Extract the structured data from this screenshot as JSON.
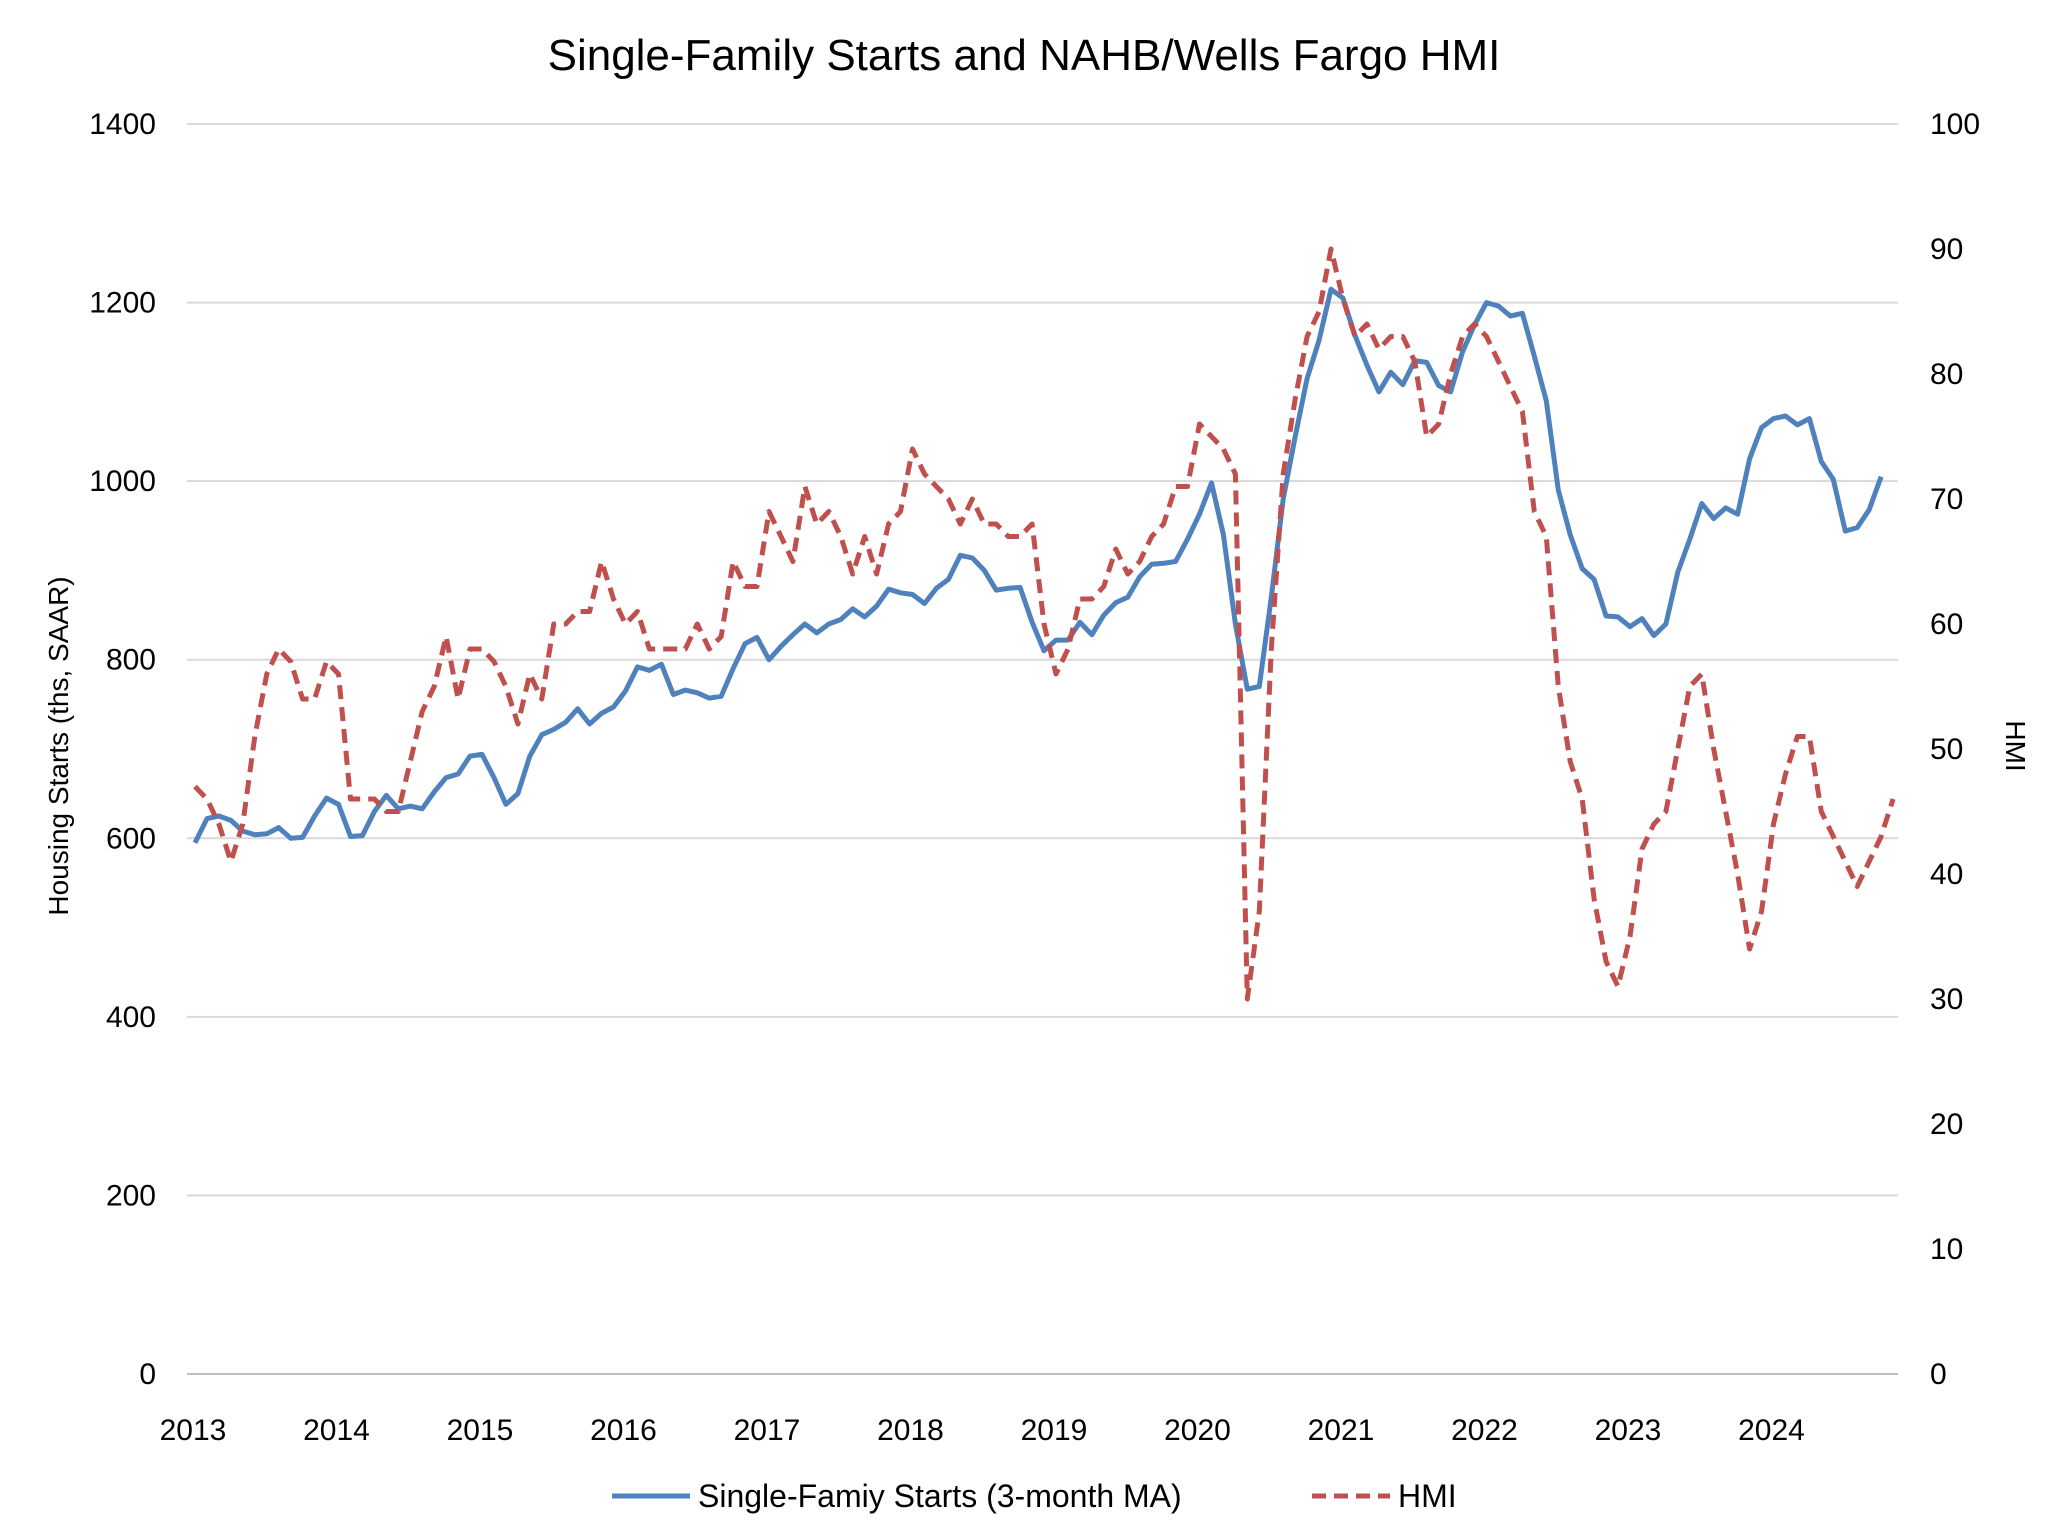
{
  "chart_data": {
    "type": "line",
    "title": "Single-Family Starts and NAHB/Wells Fargo HMI",
    "ylabel_left": "Housing Starts (ths, SAAR)",
    "ylabel_right": "HMI",
    "ylim_left": [
      0,
      1400
    ],
    "ylim_right": [
      0,
      100
    ],
    "yticks_left": [
      "0",
      "200",
      "400",
      "600",
      "800",
      "1000",
      "1200",
      "1400"
    ],
    "yticks_right": [
      "0",
      "10",
      "20",
      "30",
      "40",
      "50",
      "60",
      "70",
      "80",
      "90",
      "100"
    ],
    "xticks": [
      "2013",
      "2014",
      "2015",
      "2016",
      "2017",
      "2018",
      "2019",
      "2020",
      "2021",
      "2022",
      "2023",
      "2024"
    ],
    "grid": true,
    "legend_position": "bottom",
    "x_start": "2013-01",
    "x_frequency": "monthly",
    "series": [
      {
        "name": "Single-Famiy Starts (3-month MA)",
        "axis": "left",
        "color": "#4f81bd",
        "style": "solid",
        "values": [
          595,
          622,
          625,
          620,
          608,
          604,
          605,
          612,
          600,
          601,
          625,
          645,
          638,
          602,
          603,
          630,
          648,
          633,
          636,
          633,
          652,
          668,
          672,
          692,
          694,
          668,
          638,
          650,
          692,
          716,
          722,
          730,
          745,
          728,
          740,
          747,
          765,
          792,
          788,
          795,
          761,
          766,
          763,
          757,
          759,
          790,
          818,
          825,
          800,
          815,
          828,
          840,
          830,
          840,
          845,
          857,
          848,
          860,
          879,
          875,
          873,
          863,
          880,
          890,
          917,
          914,
          900,
          878,
          880,
          881,
          842,
          810,
          822,
          822,
          842,
          828,
          850,
          864,
          870,
          893,
          907,
          908,
          910,
          935,
          963,
          998,
          940,
          840,
          767,
          770,
          870,
          980,
          1050,
          1115,
          1158,
          1215,
          1205,
          1163,
          1130,
          1100,
          1122,
          1108,
          1135,
          1133,
          1107,
          1100,
          1145,
          1175,
          1200,
          1196,
          1185,
          1188,
          1140,
          1090,
          990,
          940,
          902,
          890,
          849,
          848,
          837,
          846,
          827,
          840,
          898,
          935,
          975,
          958,
          970,
          963,
          1025,
          1060,
          1070,
          1073,
          1063,
          1070,
          1022,
          1002,
          944,
          948,
          968,
          1005
        ]
      },
      {
        "name": "HMI",
        "axis": "right",
        "color": "#c0504d",
        "style": "dashed",
        "values": [
          47,
          46,
          44,
          41,
          44,
          51,
          56,
          58,
          57,
          54,
          54,
          57,
          56,
          46,
          46,
          46,
          45,
          45,
          49,
          53,
          55,
          59,
          54,
          58,
          58,
          57,
          55,
          52,
          56,
          54,
          60,
          60,
          61,
          61,
          65,
          62,
          60,
          61,
          58,
          58,
          58,
          58,
          60,
          58,
          59,
          65,
          63,
          63,
          69,
          67,
          65,
          71,
          68,
          69,
          67,
          64,
          67,
          64,
          68,
          69,
          74,
          72,
          71,
          70,
          68,
          70,
          68,
          68,
          67,
          67,
          68,
          60,
          56,
          58,
          62,
          62,
          63,
          66,
          64,
          65,
          67,
          68,
          71,
          71,
          76,
          75,
          74,
          72,
          30,
          37,
          58,
          72,
          78,
          83,
          85,
          90,
          86,
          83,
          84,
          82,
          83,
          83,
          81,
          75,
          76,
          80,
          83,
          84,
          83,
          81,
          79,
          77,
          69,
          67,
          55,
          49,
          46,
          38,
          33,
          31,
          35,
          42,
          44,
          45,
          50,
          55,
          56,
          50,
          45,
          40,
          34,
          37,
          44,
          48,
          51,
          51,
          45,
          43,
          41,
          39,
          41,
          43,
          46
        ]
      }
    ]
  }
}
